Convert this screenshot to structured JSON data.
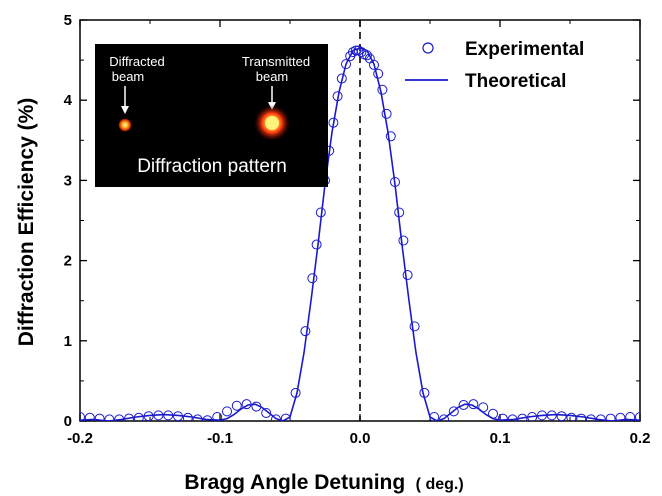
{
  "chart_data": {
    "type": "scatter",
    "xlabel_main": "Bragg Angle Detuning",
    "xlabel_unit": "( deg.)",
    "ylabel": "Diffraction Efficiency (%)",
    "xlim": [
      -0.2,
      0.2
    ],
    "ylim": [
      0,
      5
    ],
    "xticks": [
      "-0.2",
      "-0.1",
      "0.0",
      "0.1",
      "0.2"
    ],
    "yticks": [
      "0",
      "1",
      "2",
      "3",
      "4",
      "5"
    ],
    "grid": false,
    "legend_position": "top-right",
    "reference_line": {
      "x": 0.0,
      "style": "dashed"
    },
    "series": [
      {
        "name": "Experimental",
        "style": "open-circle",
        "color": "#1a1acc",
        "x": [
          -0.2,
          -0.193,
          -0.186,
          -0.179,
          -0.172,
          -0.165,
          -0.158,
          -0.151,
          -0.144,
          -0.137,
          -0.13,
          -0.123,
          -0.116,
          -0.109,
          -0.102,
          -0.095,
          -0.088,
          -0.081,
          -0.074,
          -0.067,
          -0.06,
          -0.053,
          -0.046,
          -0.039,
          -0.034,
          -0.031,
          -0.028,
          -0.025,
          -0.022,
          -0.019,
          -0.016,
          -0.013,
          -0.01,
          -0.007,
          -0.005,
          -0.003,
          -0.001,
          0.001,
          0.003,
          0.005,
          0.007,
          0.01,
          0.013,
          0.016,
          0.019,
          0.022,
          0.025,
          0.028,
          0.031,
          0.034,
          0.039,
          0.046,
          0.053,
          0.06,
          0.067,
          0.074,
          0.081,
          0.088,
          0.095,
          0.102,
          0.109,
          0.116,
          0.123,
          0.13,
          0.137,
          0.144,
          0.151,
          0.158,
          0.165,
          0.172,
          0.179,
          0.186,
          0.193,
          0.2
        ],
        "y": [
          0.05,
          0.04,
          0.03,
          0.02,
          0.02,
          0.03,
          0.04,
          0.06,
          0.07,
          0.07,
          0.06,
          0.04,
          0.02,
          0.01,
          0.05,
          0.12,
          0.19,
          0.21,
          0.18,
          0.1,
          0.02,
          0.03,
          0.35,
          1.12,
          1.78,
          2.2,
          2.6,
          3.0,
          3.37,
          3.72,
          4.05,
          4.27,
          4.45,
          4.55,
          4.6,
          4.62,
          4.62,
          4.6,
          4.57,
          4.56,
          4.52,
          4.44,
          4.33,
          4.13,
          3.83,
          3.55,
          2.98,
          2.6,
          2.25,
          1.82,
          1.18,
          0.35,
          0.05,
          0.02,
          0.12,
          0.2,
          0.21,
          0.17,
          0.09,
          0.03,
          0.02,
          0.03,
          0.05,
          0.07,
          0.07,
          0.06,
          0.04,
          0.03,
          0.02,
          0.02,
          0.03,
          0.04,
          0.05,
          0.05
        ]
      },
      {
        "name": "Theoretical",
        "style": "line",
        "color": "#1a1acc",
        "x": [
          -0.2,
          -0.19,
          -0.18,
          -0.17,
          -0.16,
          -0.15,
          -0.14,
          -0.13,
          -0.12,
          -0.11,
          -0.1,
          -0.095,
          -0.09,
          -0.085,
          -0.08,
          -0.075,
          -0.07,
          -0.065,
          -0.06,
          -0.055,
          -0.05,
          -0.045,
          -0.04,
          -0.035,
          -0.03,
          -0.025,
          -0.02,
          -0.015,
          -0.01,
          -0.005,
          0.0,
          0.005,
          0.01,
          0.015,
          0.02,
          0.025,
          0.03,
          0.035,
          0.04,
          0.045,
          0.05,
          0.055,
          0.06,
          0.065,
          0.07,
          0.075,
          0.08,
          0.085,
          0.09,
          0.095,
          0.1,
          0.11,
          0.12,
          0.13,
          0.14,
          0.15,
          0.16,
          0.17,
          0.18,
          0.19,
          0.2
        ],
        "y": [
          0.01,
          0.02,
          0.0,
          0.02,
          0.05,
          0.07,
          0.08,
          0.07,
          0.05,
          0.02,
          0.01,
          0.03,
          0.08,
          0.15,
          0.2,
          0.21,
          0.17,
          0.1,
          0.03,
          0.0,
          0.05,
          0.35,
          0.85,
          1.5,
          2.2,
          2.95,
          3.6,
          4.1,
          4.45,
          4.62,
          4.65,
          4.62,
          4.45,
          4.1,
          3.6,
          2.95,
          2.2,
          1.5,
          0.85,
          0.35,
          0.05,
          0.0,
          0.03,
          0.1,
          0.17,
          0.21,
          0.2,
          0.15,
          0.08,
          0.03,
          0.01,
          0.02,
          0.05,
          0.07,
          0.08,
          0.07,
          0.05,
          0.02,
          0.0,
          0.02,
          0.01
        ]
      }
    ]
  },
  "inset": {
    "diffracted_label_line1": "Diffracted",
    "diffracted_label_line2": "beam",
    "transmitted_label_line1": "Transmitted",
    "transmitted_label_line2": "beam",
    "caption": "Diffraction pattern"
  },
  "colors": {
    "series": "#1a1acc",
    "inset_background": "#000000",
    "spot_core": "#fff27a",
    "spot_glow": "#e03010"
  }
}
